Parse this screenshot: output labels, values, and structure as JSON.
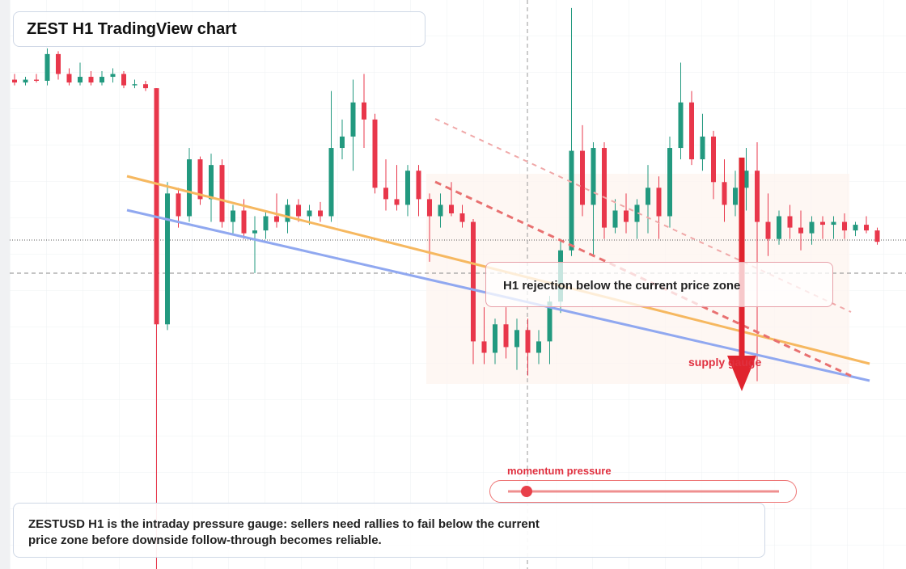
{
  "chart_data": {
    "type": "candlestick",
    "title": "ZEST H1 TradingView chart",
    "ylim": [
      0,
      100
    ],
    "up_color": "#22997f",
    "down_color": "#e8374b",
    "open": [
      86,
      85.5,
      86,
      85.8,
      90.5,
      87,
      85.5,
      86.5,
      85.5,
      86.5,
      87,
      85,
      85.2,
      84.5,
      43,
      66,
      62,
      72,
      65,
      71,
      61,
      63,
      59,
      59.5,
      62,
      61,
      64,
      62,
      63,
      62,
      74,
      76,
      82,
      79,
      67,
      65,
      64,
      70,
      65,
      62,
      64,
      62.5,
      61,
      40,
      38,
      43,
      39,
      42,
      38,
      40,
      47,
      56,
      73.5,
      64,
      74,
      60,
      63,
      61,
      64,
      67,
      62,
      74,
      82,
      72,
      76,
      68,
      64,
      67,
      70,
      61,
      58,
      62,
      60,
      59,
      61,
      60.5,
      61,
      59.5,
      60.5,
      59.5
    ],
    "high": [
      87,
      86.5,
      87,
      91.5,
      91,
      88,
      89,
      87.5,
      87.5,
      88,
      87.5,
      86,
      85.8,
      84.5,
      68,
      67,
      74,
      72.5,
      73,
      72,
      64,
      65,
      62,
      63,
      66,
      65,
      65,
      64,
      64.5,
      84,
      79,
      86,
      87,
      80,
      72,
      71,
      71,
      71,
      66,
      66,
      68,
      64,
      61.5,
      46,
      44,
      46,
      44,
      44,
      42,
      48,
      58,
      98.6,
      78,
      75,
      75,
      65,
      66,
      65,
      71,
      69,
      76,
      89,
      84,
      80,
      77,
      72,
      70,
      74,
      75,
      66,
      63,
      64,
      63,
      62,
      62,
      62,
      62.5,
      61,
      62,
      60
    ],
    "low": [
      85,
      85,
      85.5,
      85,
      86,
      85,
      85,
      85,
      85,
      85.5,
      84.5,
      84.5,
      84,
      0,
      42,
      60,
      61,
      64,
      61,
      60,
      59,
      58,
      52,
      58,
      60,
      59,
      61,
      60.5,
      61,
      61,
      72,
      70,
      74,
      66,
      63,
      63,
      62,
      62,
      54,
      60,
      62,
      60,
      36,
      36,
      36,
      37,
      35,
      34,
      36,
      36,
      45,
      55,
      62,
      55,
      58,
      59,
      59,
      58,
      59,
      58,
      60,
      72,
      71,
      70,
      65,
      61,
      62,
      63,
      33,
      55,
      57,
      58,
      56,
      57,
      58,
      58,
      58,
      58.5,
      59,
      57
    ],
    "close": [
      85.5,
      86,
      85.8,
      90.5,
      87,
      85.5,
      86.5,
      85.5,
      86.5,
      87,
      85,
      85.2,
      84.5,
      43,
      66,
      62,
      72,
      65,
      71,
      61,
      63,
      59,
      59.5,
      62,
      61,
      64,
      62,
      63,
      62,
      74,
      76,
      82,
      79,
      67,
      65,
      64,
      70,
      65,
      62,
      64,
      62.5,
      61,
      40,
      38,
      43,
      39,
      42,
      38,
      40,
      47,
      56,
      73.5,
      64,
      74,
      60,
      63,
      61,
      64,
      67,
      62,
      74,
      82,
      72,
      76,
      68,
      64,
      67,
      70,
      61,
      58,
      62,
      60,
      59,
      61,
      60.5,
      61,
      59.5,
      60.5,
      59.5,
      57.5
    ],
    "annotations": [
      "H1 rejection below the current price zone",
      "supply gauge",
      "momentum pressure"
    ],
    "caption": "ZESTUSD H1 is the intraday pressure gauge: sellers need rallies to fail below the current price zone before downside follow-through becomes reliable."
  }
}
